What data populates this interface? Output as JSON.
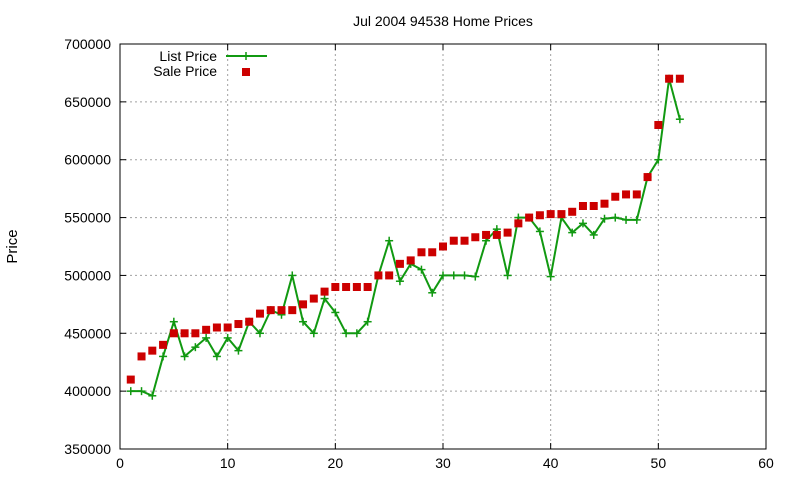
{
  "chart_data": {
    "type": "line",
    "title": "Jul 2004 94538 Home Prices",
    "xlabel": "",
    "ylabel": "Price",
    "xlim": [
      0,
      60
    ],
    "ylim": [
      350000,
      700000
    ],
    "x_ticks": [
      0,
      10,
      20,
      30,
      40,
      50,
      60
    ],
    "y_ticks": [
      350000,
      400000,
      450000,
      500000,
      550000,
      600000,
      650000,
      700000
    ],
    "grid": true,
    "legend_position": "top-left",
    "series": [
      {
        "name": "List Price",
        "style": "line-plus",
        "color": "#119911",
        "points": [
          [
            1,
            400000
          ],
          [
            2,
            400000
          ],
          [
            3,
            396000
          ],
          [
            4,
            430000
          ],
          [
            5,
            460000
          ],
          [
            6,
            430000
          ],
          [
            7,
            438000
          ],
          [
            8,
            446000
          ],
          [
            9,
            430000
          ],
          [
            10,
            446000
          ],
          [
            11,
            435000
          ],
          [
            12,
            460000
          ],
          [
            13,
            450000
          ],
          [
            14,
            470000
          ],
          [
            15,
            466000
          ],
          [
            16,
            500000
          ],
          [
            17,
            460000
          ],
          [
            18,
            450000
          ],
          [
            19,
            480000
          ],
          [
            20,
            468000
          ],
          [
            21,
            450000
          ],
          [
            22,
            450000
          ],
          [
            23,
            460000
          ],
          [
            24,
            500000
          ],
          [
            25,
            530000
          ],
          [
            26,
            495000
          ],
          [
            27,
            510000
          ],
          [
            28,
            505000
          ],
          [
            29,
            485000
          ],
          [
            30,
            500000
          ],
          [
            31,
            500000
          ],
          [
            32,
            500000
          ],
          [
            33,
            499000
          ],
          [
            34,
            530000
          ],
          [
            35,
            540000
          ],
          [
            36,
            500000
          ],
          [
            37,
            550000
          ],
          [
            38,
            550000
          ],
          [
            39,
            538000
          ],
          [
            40,
            499000
          ],
          [
            41,
            550000
          ],
          [
            42,
            537000
          ],
          [
            43,
            545000
          ],
          [
            44,
            535000
          ],
          [
            45,
            549000
          ],
          [
            46,
            550000
          ],
          [
            47,
            548000
          ],
          [
            48,
            548000
          ],
          [
            49,
            585000
          ],
          [
            50,
            600000
          ],
          [
            51,
            670000
          ],
          [
            52,
            635000
          ]
        ]
      },
      {
        "name": "Sale Price",
        "style": "square-markers",
        "color": "#cc0000",
        "points": [
          [
            1,
            410000
          ],
          [
            2,
            430000
          ],
          [
            3,
            435000
          ],
          [
            4,
            440000
          ],
          [
            5,
            450000
          ],
          [
            6,
            450000
          ],
          [
            7,
            450000
          ],
          [
            8,
            453000
          ],
          [
            9,
            455000
          ],
          [
            10,
            455000
          ],
          [
            11,
            458000
          ],
          [
            12,
            460000
          ],
          [
            13,
            467000
          ],
          [
            14,
            470000
          ],
          [
            15,
            470000
          ],
          [
            16,
            470000
          ],
          [
            17,
            475000
          ],
          [
            18,
            480000
          ],
          [
            19,
            486000
          ],
          [
            20,
            490000
          ],
          [
            21,
            490000
          ],
          [
            22,
            490000
          ],
          [
            23,
            490000
          ],
          [
            24,
            500000
          ],
          [
            25,
            500000
          ],
          [
            26,
            510000
          ],
          [
            27,
            513000
          ],
          [
            28,
            520000
          ],
          [
            29,
            520000
          ],
          [
            30,
            525000
          ],
          [
            31,
            530000
          ],
          [
            32,
            530000
          ],
          [
            33,
            533000
          ],
          [
            34,
            535000
          ],
          [
            35,
            535000
          ],
          [
            36,
            537000
          ],
          [
            37,
            545000
          ],
          [
            38,
            550000
          ],
          [
            39,
            552000
          ],
          [
            40,
            553000
          ],
          [
            41,
            553000
          ],
          [
            42,
            555000
          ],
          [
            43,
            560000
          ],
          [
            44,
            560000
          ],
          [
            45,
            562000
          ],
          [
            46,
            568000
          ],
          [
            47,
            570000
          ],
          [
            48,
            570000
          ],
          [
            49,
            585000
          ],
          [
            50,
            630000
          ],
          [
            51,
            670000
          ],
          [
            52,
            670000
          ]
        ]
      }
    ]
  }
}
